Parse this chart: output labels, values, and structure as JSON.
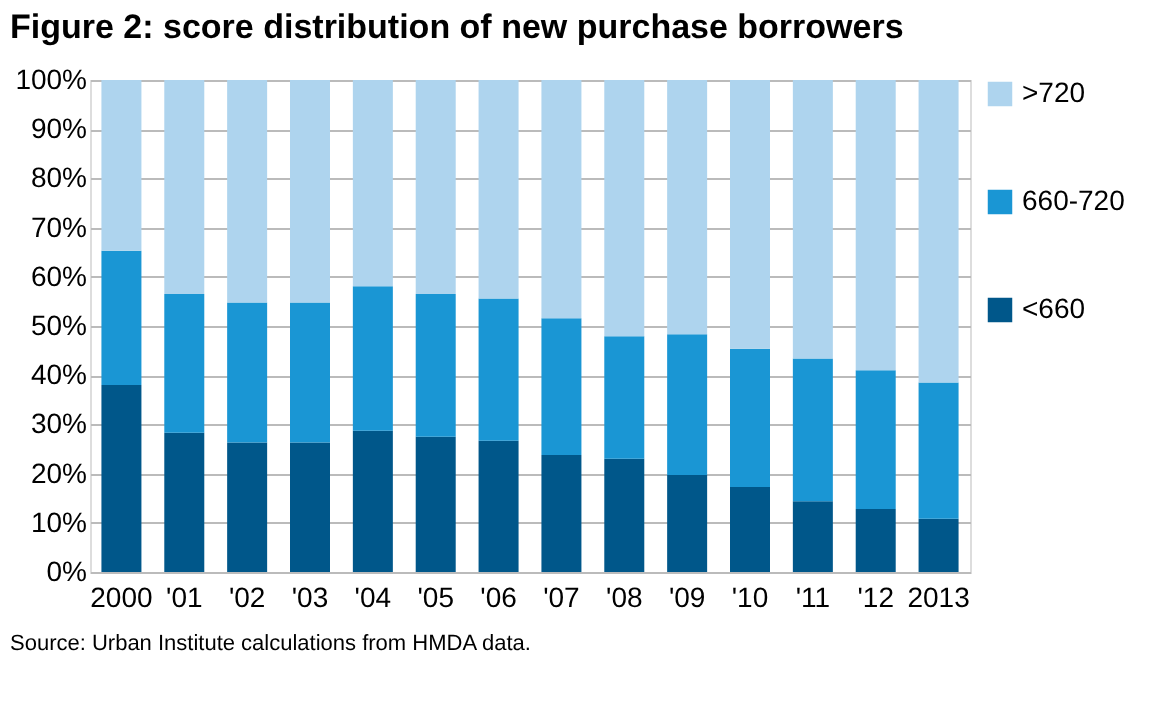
{
  "chart_data": {
    "type": "bar",
    "stacked": true,
    "title": "Figure 2: score distribution of new purchase borrowers",
    "categories": [
      "2000",
      "'01",
      "'02",
      "'03",
      "'04",
      "'05",
      "'06",
      "'07",
      "'08",
      "'09",
      "'10",
      "'11",
      "'12",
      "2013"
    ],
    "series": [
      {
        "name": "<660",
        "color": "#00578a",
        "values": [
          38.0,
          28.3,
          26.3,
          26.3,
          28.7,
          27.5,
          26.7,
          23.8,
          23.0,
          19.7,
          17.3,
          14.4,
          12.8,
          10.8
        ]
      },
      {
        "name": "660-720",
        "color": "#1a96d4",
        "values": [
          27.3,
          28.2,
          28.5,
          28.5,
          29.4,
          29.0,
          28.9,
          27.8,
          24.9,
          28.6,
          28.1,
          29.0,
          28.2,
          27.7
        ]
      },
      {
        "name": ">720",
        "color": "#aed4ee",
        "values": [
          34.7,
          43.5,
          45.2,
          45.2,
          41.9,
          43.5,
          44.4,
          48.4,
          52.1,
          51.7,
          54.6,
          56.6,
          59.0,
          61.5
        ]
      }
    ],
    "ylim": [
      0,
      100
    ],
    "yticks": [
      {
        "value": 0,
        "label": "0%"
      },
      {
        "value": 10,
        "label": "10%"
      },
      {
        "value": 20,
        "label": "20%"
      },
      {
        "value": 30,
        "label": "30%"
      },
      {
        "value": 40,
        "label": "40%"
      },
      {
        "value": 50,
        "label": "50%"
      },
      {
        "value": 60,
        "label": "60%"
      },
      {
        "value": 70,
        "label": "70%"
      },
      {
        "value": 80,
        "label": "80%"
      },
      {
        "value": 90,
        "label": "90%"
      },
      {
        "value": 100,
        "label": "100%"
      }
    ],
    "grid": "y",
    "legend": "right",
    "annotations": [
      "Source: Urban Institute calculations from HMDA data."
    ]
  }
}
